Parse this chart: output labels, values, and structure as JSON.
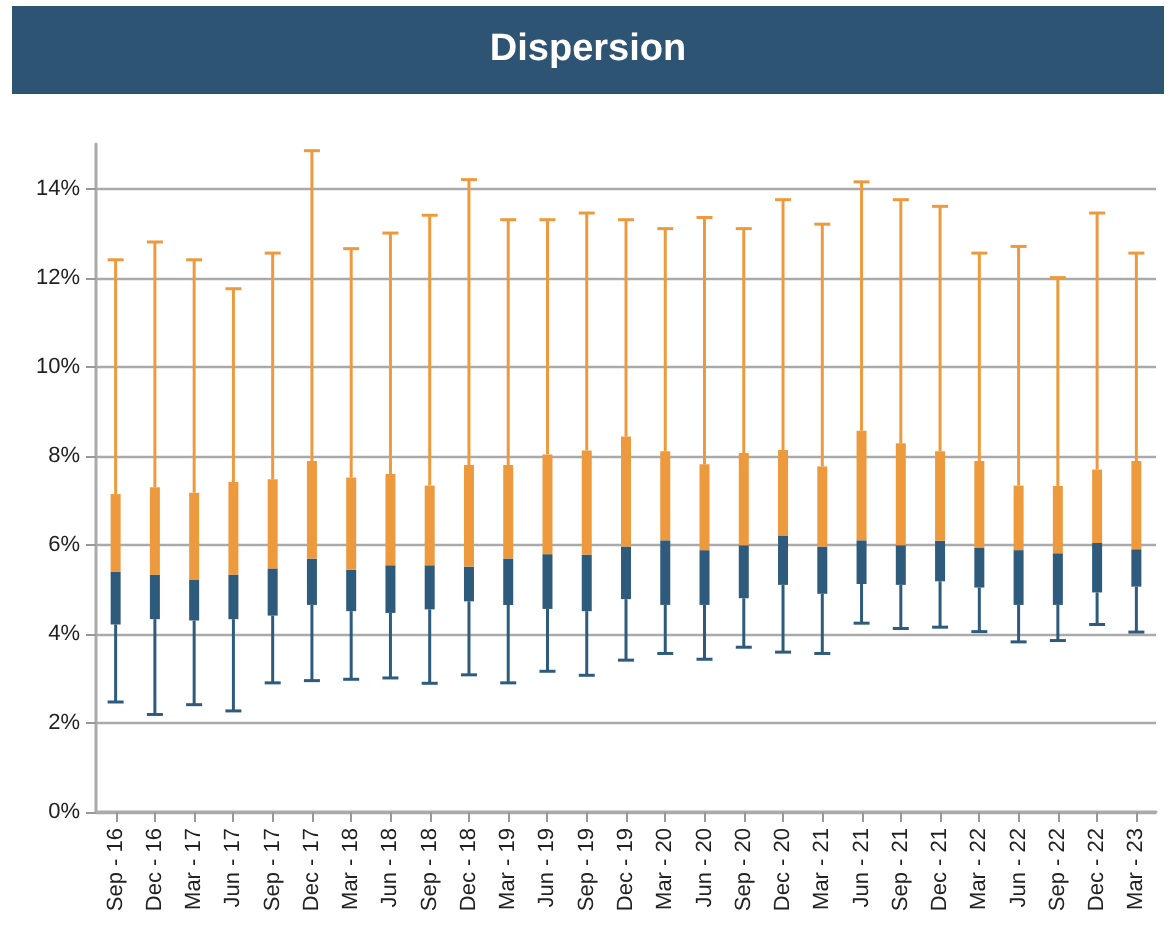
{
  "chart_data": {
    "type": "box",
    "title": "Dispersion",
    "categories": [
      "Sep - 16",
      "Dec - 16",
      "Mar - 17",
      "Jun - 17",
      "Sep - 17",
      "Dec - 17",
      "Mar - 18",
      "Jun - 18",
      "Sep - 18",
      "Dec - 18",
      "Mar - 19",
      "Jun - 19",
      "Sep - 19",
      "Dec - 19",
      "Mar - 20",
      "Jun - 20",
      "Sep - 20",
      "Dec - 20",
      "Mar - 21",
      "Jun - 21",
      "Sep - 21",
      "Dec - 21",
      "Mar - 22",
      "Jun - 22",
      "Sep - 22",
      "Dec - 22",
      "Mar - 23"
    ],
    "series": [
      {
        "color": "#ed9a3f",
        "colors": [
          "#2e5a7c",
          "#2e5a7c",
          "#2e5a7c",
          "#2e5a7c",
          "#2e5a7c",
          "#2e5a7c",
          "#2e5a7c",
          "#2e5a7c",
          "#2e5a7c",
          "#2e5a7c",
          "#2e5a7c",
          "#2e5a7c",
          "#2e5a7c",
          "#2e5a7c",
          "#2e5a7c",
          "#2e5a7c",
          "#2e5a7c",
          "#2e5a7c",
          "#2e5a7c",
          "#2e5a7c",
          "#2e5a7c",
          "#2e5a7c",
          "#2e5a7c",
          "#2e5a7c",
          "#2e5a7c",
          "#2e5a7c",
          "#2e5a7c"
        ],
        "boxes": [
          {
            "low": 2.47,
            "q1": 4.21,
            "median": 5.39,
            "q3": 7.14,
            "high": 12.4
          },
          {
            "low": 2.19,
            "q1": 4.33,
            "median": 5.33,
            "q3": 7.29,
            "high": 12.8
          },
          {
            "low": 2.41,
            "q1": 4.3,
            "median": 5.21,
            "q3": 7.17,
            "high": 12.4
          },
          {
            "low": 2.27,
            "q1": 4.33,
            "median": 5.33,
            "q3": 7.41,
            "high": 11.75
          },
          {
            "low": 2.9,
            "q1": 4.41,
            "median": 5.47,
            "q3": 7.47,
            "high": 12.55
          },
          {
            "low": 2.95,
            "q1": 4.65,
            "median": 5.69,
            "q3": 7.88,
            "high": 14.85
          },
          {
            "low": 2.98,
            "q1": 4.51,
            "median": 5.44,
            "q3": 7.51,
            "high": 12.65
          },
          {
            "low": 3.01,
            "q1": 4.47,
            "median": 5.54,
            "q3": 7.59,
            "high": 13.0
          },
          {
            "low": 2.89,
            "q1": 4.55,
            "median": 5.54,
            "q3": 7.33,
            "high": 13.4
          },
          {
            "low": 3.08,
            "q1": 4.73,
            "median": 5.51,
            "q3": 7.79,
            "high": 14.2
          },
          {
            "low": 2.9,
            "q1": 4.65,
            "median": 5.69,
            "q3": 7.79,
            "high": 13.3
          },
          {
            "low": 3.16,
            "q1": 4.56,
            "median": 5.79,
            "q3": 8.03,
            "high": 13.3
          },
          {
            "low": 3.07,
            "q1": 4.51,
            "median": 5.78,
            "q3": 8.12,
            "high": 13.45
          },
          {
            "low": 3.41,
            "q1": 4.78,
            "median": 5.96,
            "q3": 8.43,
            "high": 13.3
          },
          {
            "low": 3.56,
            "q1": 4.65,
            "median": 6.1,
            "q3": 8.1,
            "high": 13.1
          },
          {
            "low": 3.43,
            "q1": 4.65,
            "median": 5.88,
            "q3": 7.81,
            "high": 13.35
          },
          {
            "low": 3.7,
            "q1": 4.8,
            "median": 5.99,
            "q3": 8.06,
            "high": 13.1
          },
          {
            "low": 3.59,
            "q1": 5.1,
            "median": 6.21,
            "q3": 8.13,
            "high": 13.75
          },
          {
            "low": 3.56,
            "q1": 4.9,
            "median": 5.96,
            "q3": 7.76,
            "high": 13.2
          },
          {
            "low": 4.24,
            "q1": 5.12,
            "median": 6.1,
            "q3": 8.56,
            "high": 14.15
          },
          {
            "low": 4.12,
            "q1": 5.1,
            "median": 5.99,
            "q3": 8.28,
            "high": 13.75
          },
          {
            "low": 4.15,
            "q1": 5.18,
            "median": 6.09,
            "q3": 8.1,
            "high": 13.6
          },
          {
            "low": 4.05,
            "q1": 5.04,
            "median": 5.93,
            "q3": 7.88,
            "high": 12.55
          },
          {
            "low": 3.82,
            "q1": 4.65,
            "median": 5.88,
            "q3": 7.33,
            "high": 12.7
          },
          {
            "low": 3.85,
            "q1": 4.65,
            "median": 5.81,
            "q3": 7.32,
            "high": 12.0
          },
          {
            "low": 4.21,
            "q1": 4.93,
            "median": 6.04,
            "q3": 7.69,
            "high": 13.45
          },
          {
            "low": 4.04,
            "q1": 5.06,
            "median": 5.9,
            "q3": 7.88,
            "high": 12.55
          }
        ]
      }
    ],
    "ylim": [
      0,
      15
    ],
    "yticks": [
      {
        "value": 0,
        "label": "0%"
      },
      {
        "value": 2,
        "label": "2%"
      },
      {
        "value": 4,
        "label": "4%"
      },
      {
        "value": 6,
        "label": "6%"
      },
      {
        "value": 8,
        "label": "8%"
      },
      {
        "value": 10,
        "label": "10%"
      },
      {
        "value": 12,
        "label": "12%"
      },
      {
        "value": 14,
        "label": "14%"
      }
    ],
    "grid": "y"
  }
}
